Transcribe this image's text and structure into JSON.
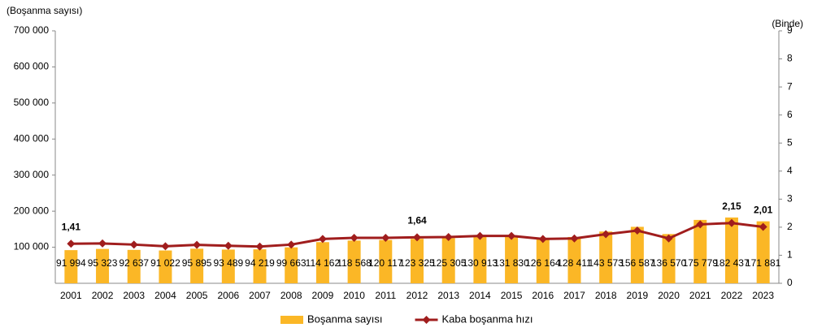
{
  "chart_data": {
    "type": "combo",
    "y_label": "(Boşanma sayısı)",
    "y2_label": "(Binde)",
    "categories": [
      "2001",
      "2002",
      "2003",
      "2004",
      "2005",
      "2006",
      "2007",
      "2008",
      "2009",
      "2010",
      "2011",
      "2012",
      "2013",
      "2014",
      "2015",
      "2016",
      "2017",
      "2018",
      "2019",
      "2020",
      "2021",
      "2022",
      "2023"
    ],
    "ylim": [
      0,
      700000
    ],
    "yticks": [
      {
        "value": 100000,
        "label": "100 000"
      },
      {
        "value": 200000,
        "label": "200 000"
      },
      {
        "value": 300000,
        "label": "300 000"
      },
      {
        "value": 400000,
        "label": "400 000"
      },
      {
        "value": 500000,
        "label": "500 000"
      },
      {
        "value": 600000,
        "label": "600 000"
      },
      {
        "value": 700000,
        "label": "700 000"
      }
    ],
    "y2lim": [
      0,
      9
    ],
    "y2ticks": [
      0,
      1,
      2,
      3,
      4,
      5,
      6,
      7,
      8,
      9
    ],
    "legend": "bottom",
    "series": [
      {
        "name": "Boşanma sayısı",
        "type": "bar",
        "color": "#fbb726",
        "values": [
          91994,
          95323,
          92637,
          91022,
          95895,
          93489,
          94219,
          99663,
          114162,
          118568,
          120117,
          123325,
          125305,
          130913,
          131830,
          126164,
          128411,
          143573,
          156587,
          136570,
          175779,
          182437,
          171881
        ],
        "value_labels": [
          "91 994",
          "95 323",
          "92 637",
          "91 022",
          "95 895",
          "93 489",
          "94 219",
          "99 663",
          "114 162",
          "118 568",
          "120 117",
          "123 325",
          "125 305",
          "130 913",
          "131 830",
          "126 164",
          "128 411",
          "143 573",
          "156 587",
          "136 570",
          "175 779",
          "182 437",
          "171 881"
        ]
      },
      {
        "name": "Kaba boşanma hızı",
        "type": "line",
        "axis": "y2",
        "color": "#a01d1d",
        "values": [
          1.41,
          1.42,
          1.38,
          1.32,
          1.37,
          1.34,
          1.31,
          1.38,
          1.58,
          1.62,
          1.62,
          1.64,
          1.65,
          1.69,
          1.69,
          1.58,
          1.6,
          1.75,
          1.88,
          1.6,
          2.1,
          2.15,
          2.01
        ],
        "value_labels": [
          "1,41",
          null,
          null,
          null,
          null,
          null,
          null,
          null,
          null,
          null,
          null,
          "1,64",
          null,
          null,
          null,
          null,
          null,
          null,
          null,
          null,
          null,
          "2,15",
          "2,01"
        ]
      }
    ]
  }
}
